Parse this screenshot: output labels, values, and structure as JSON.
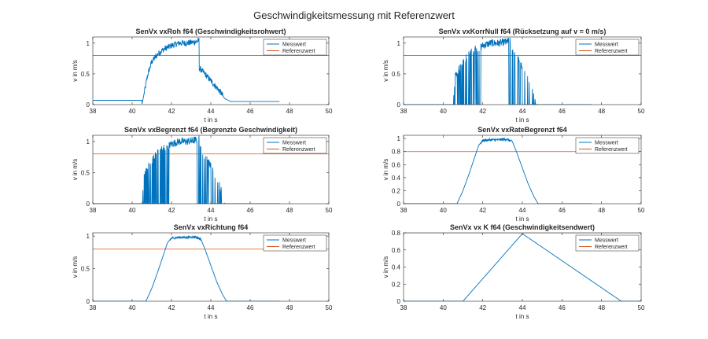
{
  "figure_title": "Geschwindigkeitsmessung mit Referenzwert",
  "colors": {
    "measured": "#0072BD",
    "reference": "#D95319",
    "axis": "#262626"
  },
  "chart_data": [
    {
      "type": "line",
      "title": "SenVx vxRoh f64 (Geschwindigkeitsrohwert)",
      "xlabel": "t in s",
      "ylabel": "v in m/s",
      "xlim": [
        38,
        50
      ],
      "ylim": [
        0,
        1.1
      ],
      "xticks": [
        38,
        40,
        42,
        44,
        46,
        48,
        50
      ],
      "yticks": [
        0,
        0.5,
        1
      ],
      "xtick_labels": [
        "38",
        "40",
        "42",
        "44",
        "46",
        "48",
        "50"
      ],
      "ytick_labels": [
        "0",
        "0.5",
        "1"
      ],
      "legend": [
        "Messwert",
        "Referenzwert"
      ],
      "legend_position": "top-right",
      "reference": 0.8,
      "series": [
        {
          "x": [
            38,
            40.5,
            40.5,
            40.8,
            41,
            41.3,
            41.6,
            42,
            42.4,
            42.8,
            43.2,
            43.4,
            43.4,
            43.7,
            44.1,
            44.5,
            44.7,
            45,
            47.5
          ],
          "y": [
            0.07,
            0.07,
            0,
            0.5,
            0.7,
            0.82,
            0.9,
            0.96,
            1.0,
            1.0,
            1.02,
            1.04,
            0.6,
            0.5,
            0.35,
            0.2,
            0.1,
            0.05,
            0.05
          ]
        }
      ],
      "noise": {
        "from": 40.6,
        "to": 44.6,
        "amplitude": 0.05,
        "dips": []
      }
    },
    {
      "type": "line",
      "title": "SenVx vxKorrNull f64 (Rücksetzung auf v = 0 m/s)",
      "xlabel": "t in s",
      "ylabel": "v in m/s",
      "xlim": [
        38,
        50
      ],
      "ylim": [
        0,
        1.1
      ],
      "xticks": [
        38,
        40,
        42,
        44,
        46,
        48,
        50
      ],
      "yticks": [
        0,
        0.5,
        1
      ],
      "xtick_labels": [
        "38",
        "40",
        "42",
        "44",
        "46",
        "48",
        "50"
      ],
      "ytick_labels": [
        "0",
        "0.5",
        "1"
      ],
      "legend": [
        "Messwert",
        "Referenzwert"
      ],
      "legend_position": "top-right",
      "reference": 0.8,
      "series": [
        {
          "x": [
            38,
            40.5,
            40.6,
            41,
            41.3,
            41.6,
            42,
            42.4,
            42.8,
            43.2,
            43.4,
            43.5,
            43.8,
            44.1,
            44.4,
            44.7,
            47.5
          ],
          "y": [
            0,
            0,
            0.45,
            0.7,
            0.82,
            0.9,
            0.96,
            1.0,
            1.0,
            1.02,
            1.04,
            0.85,
            0.72,
            0.55,
            0.35,
            0,
            0
          ]
        }
      ],
      "noise": {
        "from": 40.5,
        "to": 44.7,
        "amplitude": 0.06,
        "dips": [
          [
            40.5,
            41.9,
            0.6
          ],
          [
            43.3,
            43.9,
            0.7
          ],
          [
            44.0,
            44.7,
            0.8
          ]
        ]
      }
    },
    {
      "type": "line",
      "title": "SenVx vxBegrenzt f64 (Begrenzte Geschwindigkeit)",
      "xlabel": "t in s",
      "ylabel": "v in m/s",
      "xlim": [
        38,
        50
      ],
      "ylim": [
        0,
        1.1
      ],
      "xticks": [
        38,
        40,
        42,
        44,
        46,
        48,
        50
      ],
      "yticks": [
        0,
        0.5,
        1
      ],
      "xtick_labels": [
        "38",
        "40",
        "42",
        "44",
        "46",
        "48",
        "50"
      ],
      "ytick_labels": [
        "0",
        "0.5",
        "1"
      ],
      "legend": [
        "Messwert",
        "Referenzwert"
      ],
      "legend_position": "top-right",
      "reference": 0.8,
      "series": [
        {
          "x": [
            38,
            40.5,
            40.6,
            41,
            41.3,
            41.6,
            42,
            42.4,
            42.8,
            43.2,
            43.4,
            43.5,
            43.8,
            44.1,
            44.4,
            44.7,
            47.5
          ],
          "y": [
            0,
            0,
            0.45,
            0.7,
            0.82,
            0.9,
            0.96,
            1.0,
            1.0,
            1.02,
            1.04,
            0.85,
            0.72,
            0.55,
            0.35,
            0,
            0
          ]
        }
      ],
      "noise": {
        "from": 40.5,
        "to": 44.7,
        "amplitude": 0.06,
        "dips": [
          [
            40.5,
            41.9,
            0.6
          ],
          [
            43.3,
            43.9,
            0.7
          ],
          [
            44.0,
            44.7,
            0.8
          ]
        ]
      }
    },
    {
      "type": "line",
      "title": "SenVx vxRateBegrenzt f64",
      "xlabel": "t in s",
      "ylabel": "v in m/s",
      "xlim": [
        38,
        50
      ],
      "ylim": [
        0,
        1.05
      ],
      "xticks": [
        38,
        40,
        42,
        44,
        46,
        48,
        50
      ],
      "yticks": [
        0,
        0.2,
        0.4,
        0.6,
        0.8,
        1
      ],
      "xtick_labels": [
        "38",
        "40",
        "42",
        "44",
        "46",
        "48",
        "50"
      ],
      "ytick_labels": [
        "0",
        "0.2",
        "0.4",
        "0.6",
        "0.8",
        "1"
      ],
      "legend": [
        "Messwert",
        "Referenzwert"
      ],
      "legend_position": "top-right",
      "reference": 0.8,
      "series": [
        {
          "x": [
            38,
            40.7,
            41,
            41.3,
            41.6,
            41.8,
            42,
            42.4,
            42.8,
            43.2,
            43.5,
            43.7,
            44,
            44.3,
            44.6,
            44.8,
            47.5
          ],
          "y": [
            0,
            0,
            0.2,
            0.45,
            0.72,
            0.9,
            0.97,
            0.98,
            0.98,
            0.99,
            0.95,
            0.8,
            0.55,
            0.3,
            0.1,
            0,
            0
          ]
        }
      ],
      "noise": {
        "from": 41.9,
        "to": 43.5,
        "amplitude": 0.02,
        "dips": []
      }
    },
    {
      "type": "line",
      "title": "SenVx vxRichtung f64",
      "xlabel": "t in s",
      "ylabel": "v in m/s",
      "xlim": [
        38,
        50
      ],
      "ylim": [
        0,
        1.05
      ],
      "xticks": [
        38,
        40,
        42,
        44,
        46,
        48,
        50
      ],
      "yticks": [
        0,
        0.5,
        1
      ],
      "xtick_labels": [
        "38",
        "40",
        "42",
        "44",
        "46",
        "48",
        "50"
      ],
      "ytick_labels": [
        "0",
        "0.5",
        "1"
      ],
      "legend": [
        "Messwert",
        "Referenzwert"
      ],
      "legend_position": "top-right",
      "reference": 0.8,
      "series": [
        {
          "x": [
            38,
            40.7,
            41,
            41.3,
            41.6,
            41.8,
            42,
            42.4,
            42.8,
            43.2,
            43.5,
            43.7,
            44,
            44.3,
            44.6,
            44.8,
            47.5
          ],
          "y": [
            0,
            0,
            0.2,
            0.45,
            0.72,
            0.9,
            0.97,
            0.98,
            0.98,
            0.99,
            0.95,
            0.8,
            0.55,
            0.3,
            0.1,
            0,
            0
          ]
        }
      ],
      "noise": {
        "from": 41.9,
        "to": 43.5,
        "amplitude": 0.02,
        "dips": []
      }
    },
    {
      "type": "line",
      "title": "SenVx vx K f64 (Geschwindigkeitsendwert)",
      "xlabel": "t in s",
      "ylabel": "v in m/s",
      "xlim": [
        38,
        50
      ],
      "ylim": [
        0,
        0.8
      ],
      "xticks": [
        38,
        40,
        42,
        44,
        46,
        48,
        50
      ],
      "yticks": [
        0,
        0.2,
        0.4,
        0.6,
        0.8
      ],
      "xtick_labels": [
        "38",
        "40",
        "42",
        "44",
        "46",
        "48",
        "50"
      ],
      "ytick_labels": [
        "0",
        "0.2",
        "0.4",
        "0.6",
        "0.8"
      ],
      "legend": [
        "Messwert",
        "Referenzwert"
      ],
      "legend_position": "top-right",
      "reference": 0.8,
      "series": [
        {
          "x": [
            38,
            41,
            44,
            49,
            50
          ],
          "y": [
            0,
            0,
            0.79,
            0,
            0
          ]
        }
      ],
      "noise": null
    }
  ]
}
